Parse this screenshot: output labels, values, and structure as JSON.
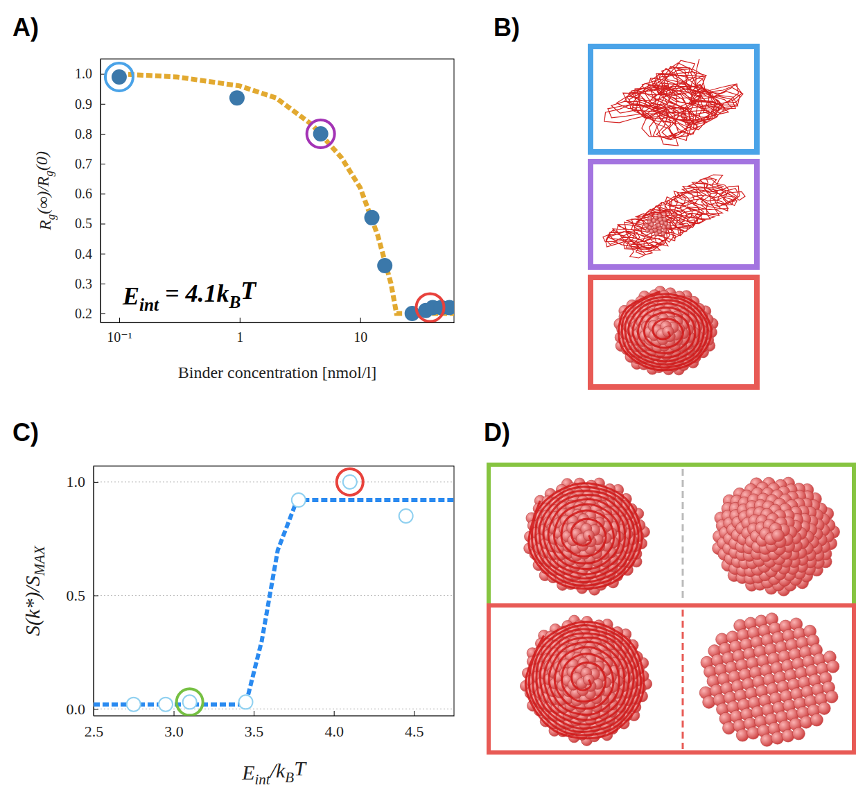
{
  "panel_labels": [
    "A)",
    "B)",
    "C)",
    "D)"
  ],
  "chart_data": [
    {
      "type": "scatter",
      "log": "x",
      "xlim": [
        0.07,
        60
      ],
      "ylim": [
        0.17,
        1.05
      ],
      "xticks": [
        {
          "value": 0.1,
          "label": "10⁻¹"
        },
        1,
        10
      ],
      "yticks": [
        0.2,
        0.3,
        0.4,
        0.5,
        0.6,
        0.7,
        0.8,
        0.9,
        {
          "value": 1,
          "label": "1.0"
        }
      ],
      "x_label": [
        "Binder concentration [nmol/l]"
      ],
      "y_label": [
        "R",
        "g",
        "(∞)/R",
        "g",
        "(0)"
      ],
      "annotation": [
        "E",
        "int",
        " = 4.1k",
        "B",
        "T"
      ],
      "series": [
        {
          "type": "line",
          "line_style": "dashed",
          "color": "#e2a930",
          "x": [
            0.1,
            0.3,
            1,
            2,
            4,
            7,
            10,
            14,
            18,
            20,
            30,
            40,
            60
          ],
          "values": [
            1.0,
            0.99,
            0.96,
            0.92,
            0.83,
            0.72,
            0.62,
            0.46,
            0.3,
            0.2,
            0.2,
            0.2,
            0.2
          ]
        },
        {
          "type": "scatter",
          "marker": "circle",
          "color": "#3b78aa",
          "x": [
            0.1,
            0.95,
            4.7,
            12.5,
            16,
            27,
            35,
            40,
            47,
            55
          ],
          "values": [
            0.99,
            0.92,
            0.8,
            0.52,
            0.36,
            0.2,
            0.21,
            0.22,
            0.22,
            0.22
          ]
        },
        {
          "type": "scatter",
          "marker": "ring",
          "colors": [
            "#4aa3e8",
            "#a333b5",
            "#e8423c"
          ],
          "x": [
            0.1,
            4.7,
            38
          ],
          "values": [
            0.99,
            0.8,
            0.22
          ]
        }
      ]
    },
    {
      "type": "scatter",
      "grid": true,
      "xlim": [
        2.5,
        4.75
      ],
      "ylim": [
        -0.03,
        1.07
      ],
      "xticks": [
        2.5,
        {
          "value": 3,
          "label": "3.0"
        },
        3.5,
        {
          "value": 4,
          "label": "4.0"
        },
        4.5
      ],
      "yticks": [
        {
          "value": 0,
          "label": "0.0"
        },
        0.5,
        {
          "value": 1,
          "label": "1.0"
        }
      ],
      "x_label": [
        "E",
        "int",
        "/k",
        "B",
        "T"
      ],
      "y_label": [
        "S(k*)/S",
        "MAX"
      ],
      "series": [
        {
          "type": "line",
          "line_style": "dashed",
          "color": "#2a8af0",
          "x": [
            2.5,
            3.45,
            3.55,
            3.65,
            3.77,
            4.75
          ],
          "values": [
            0.02,
            0.02,
            0.3,
            0.7,
            0.92,
            0.92
          ]
        },
        {
          "type": "scatter",
          "marker": "open",
          "color": "#8fd0f0",
          "x": [
            2.75,
            2.95,
            3.1,
            3.45,
            3.78,
            4.1,
            4.45
          ],
          "values": [
            0.02,
            0.02,
            0.03,
            0.03,
            0.92,
            1.0,
            0.85
          ]
        },
        {
          "type": "scatter",
          "marker": "ring",
          "colors": [
            "#76c043",
            "#e8423c"
          ],
          "x": [
            3.1,
            4.1
          ],
          "values": [
            0.03,
            1.0
          ]
        }
      ]
    }
  ]
}
